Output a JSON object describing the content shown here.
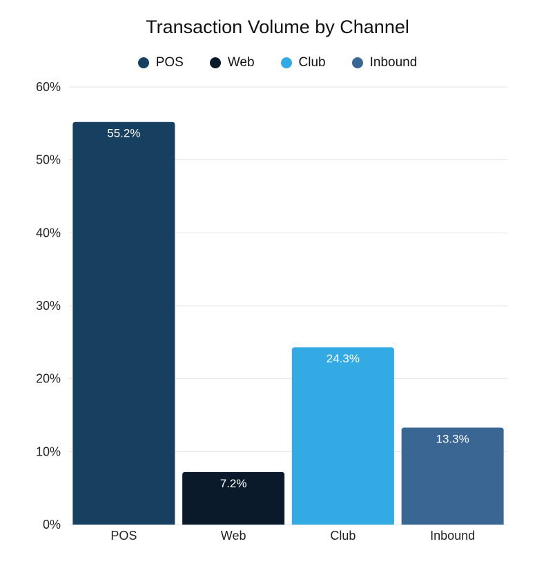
{
  "chart_data": {
    "type": "bar",
    "title": "Transaction Volume by Channel",
    "categories": [
      "POS",
      "Web",
      "Club",
      "Inbound"
    ],
    "values": [
      55.2,
      7.2,
      24.3,
      13.3
    ],
    "data_labels": [
      "55.2%",
      "7.2%",
      "24.3%",
      "13.3%"
    ],
    "colors": [
      "#173f60",
      "#0b1a2a",
      "#33aae4",
      "#3a6694"
    ],
    "legend": [
      "POS",
      "Web",
      "Club",
      "Inbound"
    ],
    "legend_placement": "top-center",
    "ylim": [
      0,
      60
    ],
    "yticks": [
      0,
      10,
      20,
      30,
      40,
      50,
      60
    ],
    "ytick_labels": [
      "0%",
      "10%",
      "20%",
      "30%",
      "40%",
      "50%",
      "60%"
    ],
    "grid": true,
    "xlabel": "",
    "ylabel": ""
  }
}
